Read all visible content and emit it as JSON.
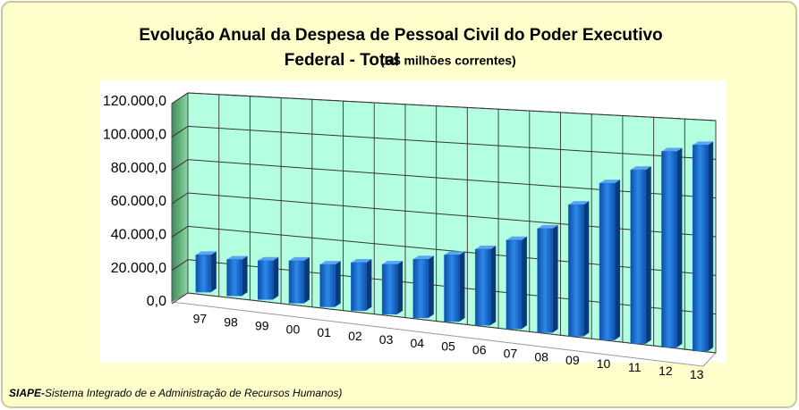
{
  "chart_data": {
    "type": "bar3d",
    "title": [
      "Evolução Anual da Despesa de Pessoal Civil do Poder Executivo",
      "Federal  - Total"
    ],
    "subtitle": "(R$ milhões correntes)",
    "categories": [
      "97",
      "98",
      "99",
      "00",
      "01",
      "02",
      "03",
      "04",
      "05",
      "06",
      "07",
      "08",
      "09",
      "10",
      "11",
      "12",
      "13"
    ],
    "values": [
      22000,
      21000,
      22000,
      23500,
      23000,
      25500,
      26000,
      30000,
      33500,
      37500,
      43000,
      49500,
      61500,
      72000,
      78500,
      87000,
      90000
    ],
    "color": "#1a6fd0",
    "ylim": [
      0,
      120000
    ],
    "yticks": [
      {
        "value": 0,
        "label": "0,0"
      },
      {
        "value": 20000,
        "label": "20.000,0"
      },
      {
        "value": 40000,
        "label": "40.000,0"
      },
      {
        "value": 60000,
        "label": "60.000,0"
      },
      {
        "value": 80000,
        "label": "80.000,0"
      },
      {
        "value": 100000,
        "label": "100.000,0"
      },
      {
        "value": 120000,
        "label": "120.000,0"
      }
    ],
    "grid": true,
    "source": {
      "label": "SIAPE-",
      "text": "Sistema Integrado de e Administração de Recursos Humanos)"
    }
  }
}
